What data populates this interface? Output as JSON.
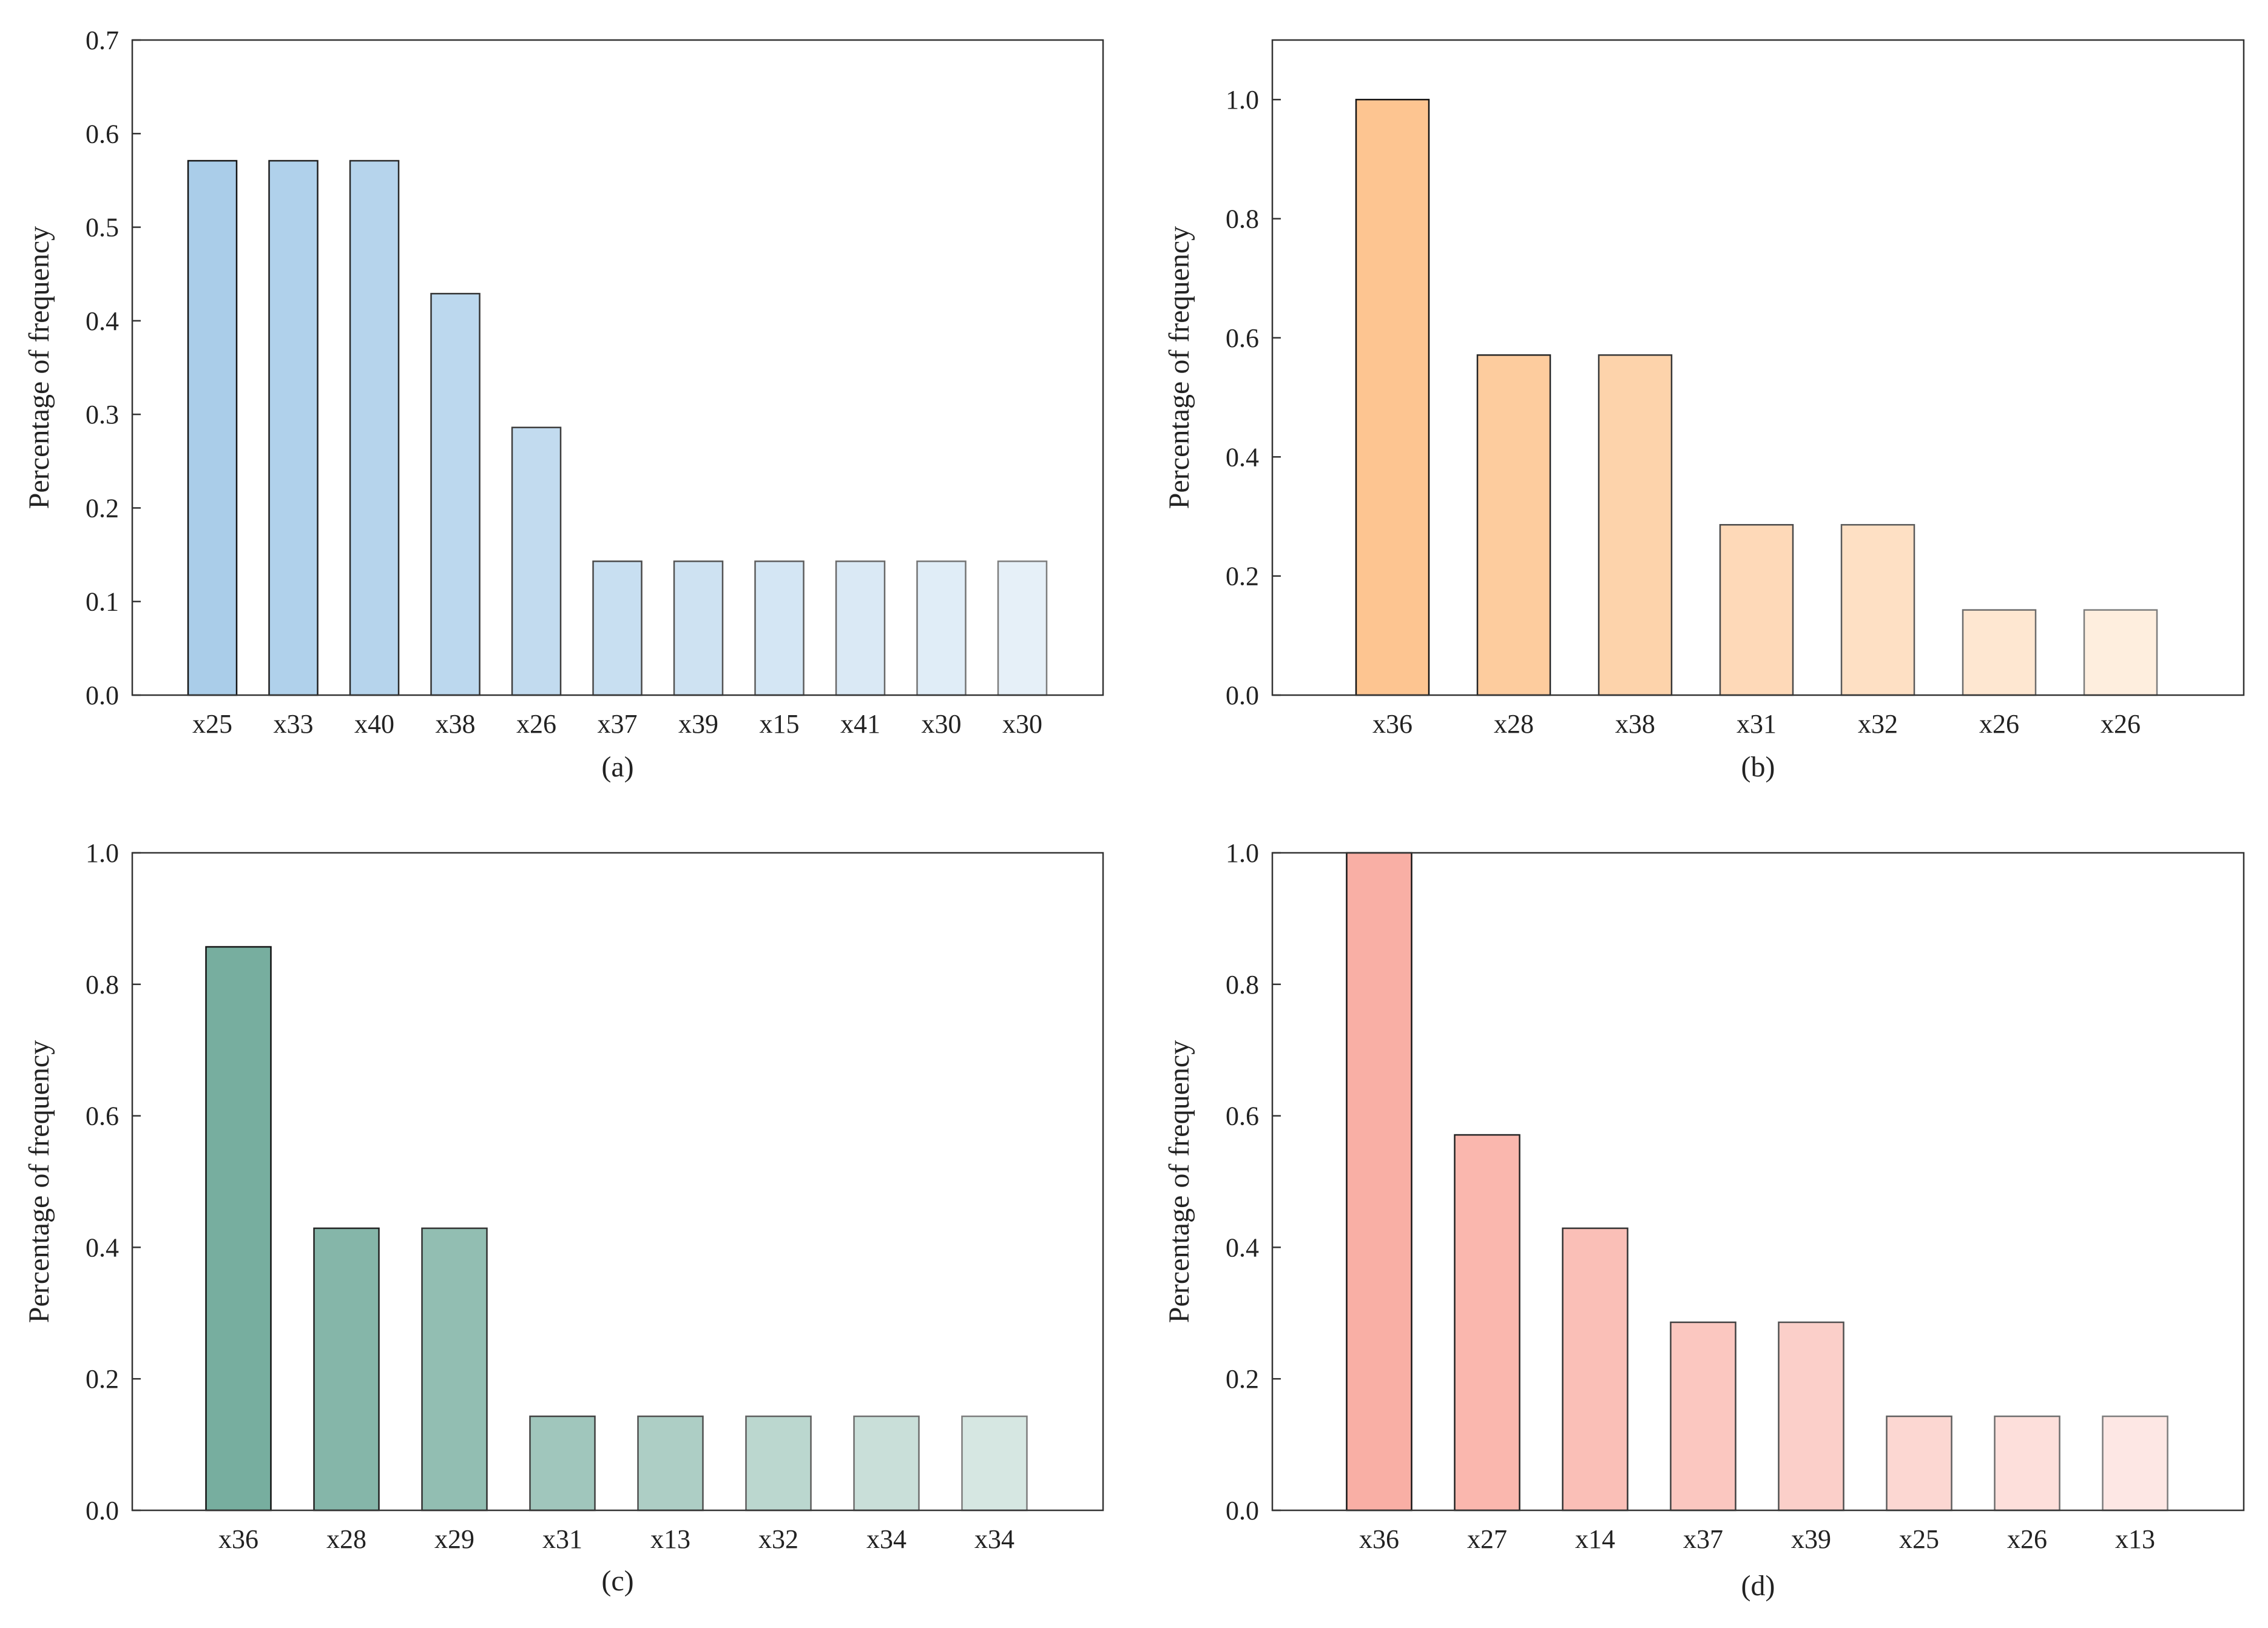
{
  "chart_data": [
    {
      "type": "bar",
      "panel_label": "(a)",
      "ylabel": "Percentage of frequency",
      "xlabel": "",
      "ylim": [
        0,
        0.7
      ],
      "yticks": [
        "0.0",
        "0.1",
        "0.2",
        "0.3",
        "0.4",
        "0.5",
        "0.6",
        "0.7"
      ],
      "categories": [
        "x25",
        "x33",
        "x40",
        "x38",
        "x26",
        "x37",
        "x39",
        "x15",
        "x41",
        "x30",
        "x30"
      ],
      "values": [
        0.571,
        0.571,
        0.571,
        0.429,
        0.286,
        0.143,
        0.143,
        0.143,
        0.143,
        0.143,
        0.143
      ],
      "color": "#aacde9",
      "grid": false
    },
    {
      "type": "bar",
      "panel_label": "(b)",
      "ylabel": "Percentage of frequency",
      "xlabel": "",
      "ylim": [
        0,
        1.1
      ],
      "yticks": [
        "0.0",
        "0.2",
        "0.4",
        "0.6",
        "0.8",
        "1.0"
      ],
      "categories": [
        "x36",
        "x28",
        "x38",
        "x31",
        "x32",
        "x26",
        "x26"
      ],
      "values": [
        1.0,
        0.571,
        0.571,
        0.286,
        0.286,
        0.143,
        0.143
      ],
      "color": "#fdc591",
      "grid": false
    },
    {
      "type": "bar",
      "panel_label": "(c)",
      "ylabel": "Percentage of frequency",
      "xlabel": "",
      "ylim": [
        0,
        1.0
      ],
      "yticks": [
        "0.0",
        "0.2",
        "0.4",
        "0.6",
        "0.8",
        "1.0"
      ],
      "categories": [
        "x36",
        "x28",
        "x29",
        "x31",
        "x13",
        "x32",
        "x34",
        "x34"
      ],
      "values": [
        0.857,
        0.429,
        0.429,
        0.143,
        0.143,
        0.143,
        0.143,
        0.143
      ],
      "color": "#77ae9f",
      "grid": false
    },
    {
      "type": "bar",
      "panel_label": "(d)",
      "ylabel": "Percentage of frequency",
      "xlabel": "",
      "ylim": [
        0,
        1.0
      ],
      "yticks": [
        "0.0",
        "0.2",
        "0.4",
        "0.6",
        "0.8",
        "1.0"
      ],
      "categories": [
        "x36",
        "x27",
        "x14",
        "x37",
        "x39",
        "x25",
        "x26",
        "x13"
      ],
      "values": [
        1.0,
        0.571,
        0.429,
        0.286,
        0.286,
        0.143,
        0.143,
        0.143
      ],
      "color": "#f9afa5",
      "grid": false
    }
  ]
}
